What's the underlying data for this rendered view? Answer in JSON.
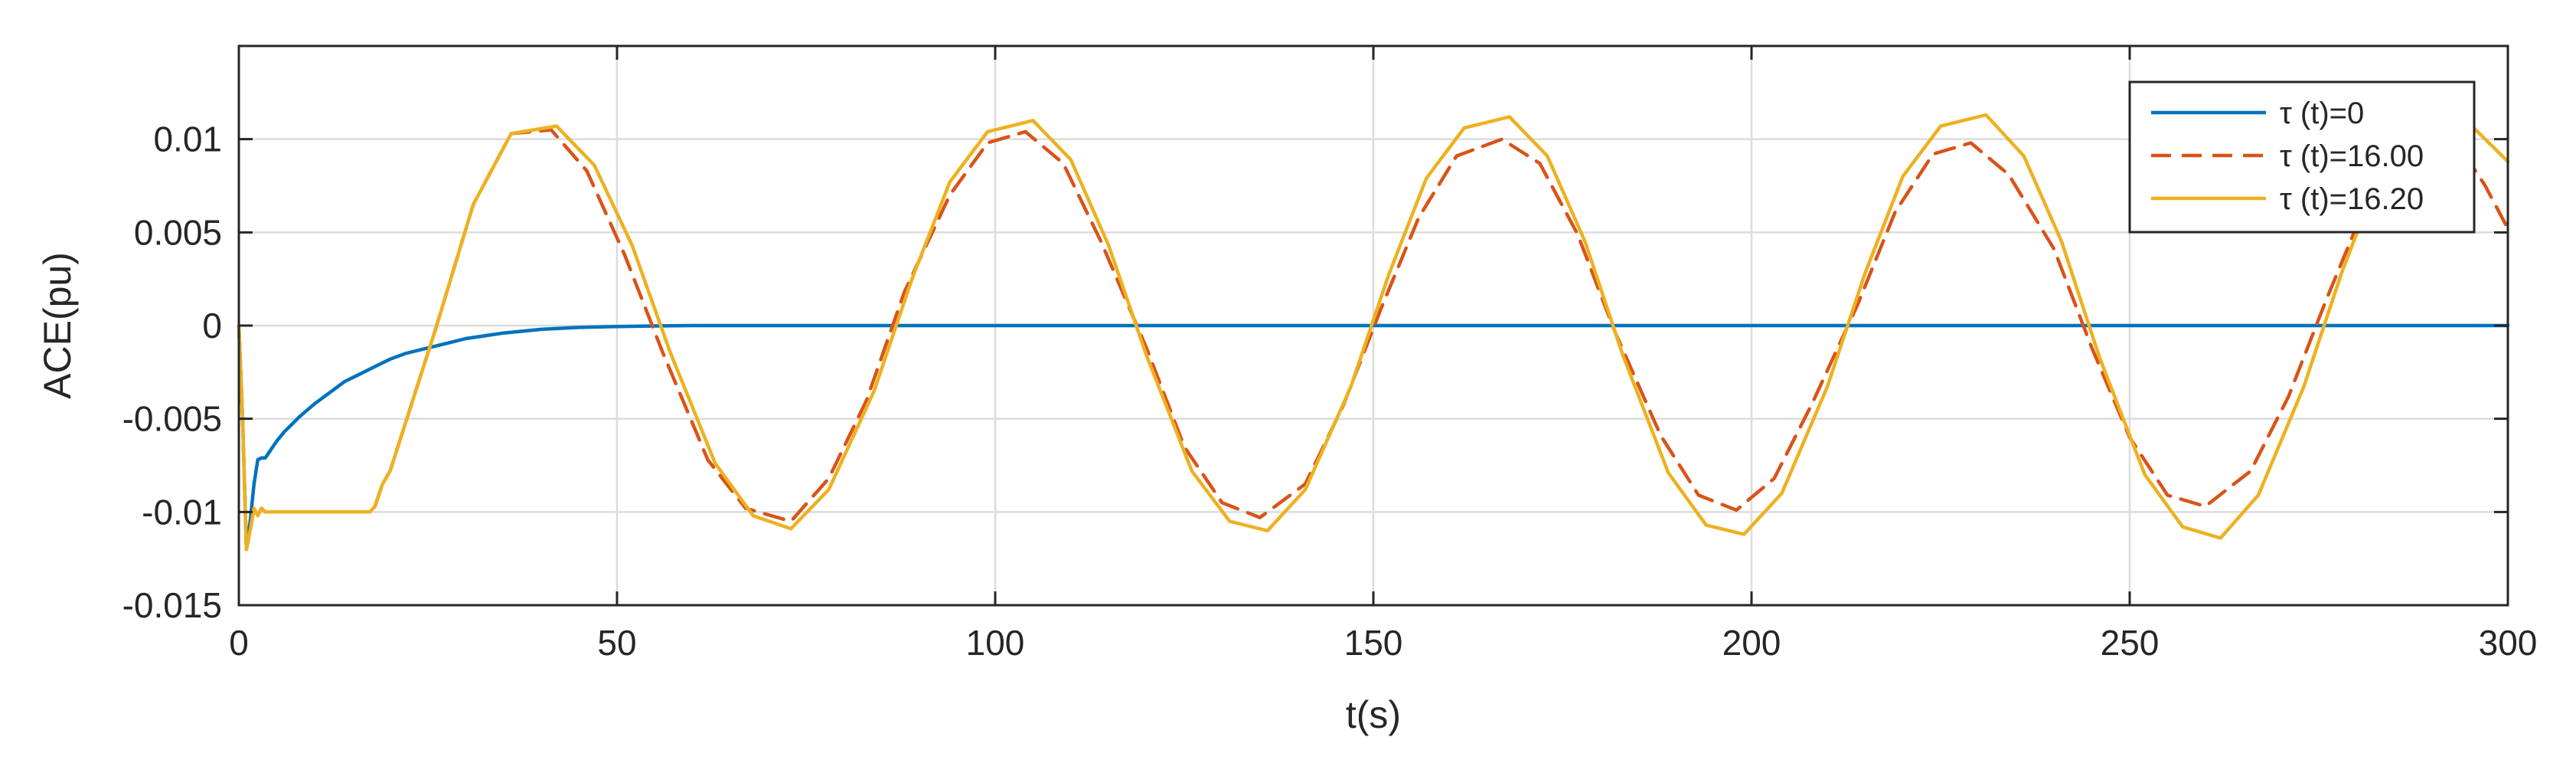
{
  "chart_data": {
    "type": "line",
    "title": "",
    "xlabel": "t(s)",
    "ylabel": "ACE(pu)",
    "xlim": [
      0,
      300
    ],
    "ylim": [
      -0.015,
      0.015
    ],
    "xticks": [
      0,
      50,
      100,
      150,
      200,
      250,
      300
    ],
    "xtick_labels": [
      "0",
      "50",
      "100",
      "150",
      "200",
      "250",
      "300"
    ],
    "yticks": [
      -0.015,
      -0.01,
      -0.005,
      0,
      0.005,
      0.01
    ],
    "ytick_labels": [
      "-0.015",
      "-0.01",
      "-0.005",
      "0",
      "0.005",
      "0.01"
    ],
    "grid": true,
    "legend_position": "top-right",
    "series": [
      {
        "name": "τ (t)=0",
        "color": "#0072BD",
        "dash": "solid",
        "x": [
          0,
          0.5,
          1,
          1.5,
          2,
          2.5,
          3,
          3.5,
          4,
          5,
          6,
          7,
          8,
          10,
          12,
          14,
          16,
          18,
          20,
          22,
          25,
          28,
          30,
          35,
          40,
          45,
          50,
          55,
          60,
          80,
          100,
          150,
          200,
          250,
          300
        ],
        "y": [
          0,
          -0.005,
          -0.012,
          -0.0105,
          -0.0085,
          -0.0072,
          -0.0071,
          -0.0071,
          -0.0068,
          -0.0062,
          -0.0057,
          -0.0053,
          -0.0049,
          -0.0042,
          -0.0036,
          -0.003,
          -0.0026,
          -0.0022,
          -0.0018,
          -0.0015,
          -0.0012,
          -0.0009,
          -0.0007,
          -0.0004,
          -0.0002,
          -0.0001,
          -5e-05,
          -2e-05,
          0,
          0,
          0,
          0,
          0,
          0,
          0
        ]
      },
      {
        "name": "τ (t)=16.00",
        "color": "#D95319",
        "dash": "dashed",
        "x": [
          0,
          0.5,
          1,
          1.5,
          2,
          2.5,
          3,
          3.5,
          4,
          5,
          10,
          15,
          17.3,
          18,
          19,
          20,
          26,
          31,
          36,
          41.3,
          46,
          51,
          56,
          62,
          67,
          73,
          78,
          83,
          88,
          94,
          99,
          104,
          109,
          114,
          120,
          125,
          130,
          135,
          141,
          146,
          151,
          156,
          161,
          167,
          172,
          177,
          182,
          188,
          193,
          198,
          203,
          208,
          214,
          219,
          224,
          229,
          234,
          240,
          245,
          250,
          255,
          260,
          266,
          271,
          276,
          281,
          286,
          292,
          297,
          300
        ],
        "y": [
          0,
          -0.005,
          -0.012,
          -0.011,
          -0.0098,
          -0.0102,
          -0.0098,
          -0.01,
          -0.01,
          -0.01,
          -0.01,
          -0.01,
          -0.01,
          -0.0097,
          -0.0085,
          -0.0078,
          -0.0002,
          0.0065,
          0.0103,
          0.0105,
          0.0083,
          0.0038,
          -0.0014,
          -0.0072,
          -0.0098,
          -0.0105,
          -0.0082,
          -0.004,
          0.0018,
          0.007,
          0.0098,
          0.0104,
          0.0087,
          0.0045,
          -0.0012,
          -0.0065,
          -0.0095,
          -0.0103,
          -0.0085,
          -0.0043,
          0.0009,
          0.0058,
          0.0091,
          0.01,
          0.0087,
          0.0049,
          -0.0004,
          -0.0059,
          -0.0091,
          -0.0099,
          -0.0082,
          -0.0042,
          0.0011,
          0.0061,
          0.0092,
          0.0098,
          0.0081,
          0.0041,
          -0.0012,
          -0.006,
          -0.0091,
          -0.0097,
          -0.0078,
          -0.0038,
          0.0014,
          0.0063,
          0.0094,
          0.0106,
          0.0075,
          0.0052
        ]
      },
      {
        "name": "τ (t)=16.20",
        "color": "#EDB120",
        "dash": "solid",
        "x": [
          0,
          0.5,
          1,
          1.5,
          2,
          2.5,
          3,
          3.5,
          4,
          5,
          10,
          15,
          17.3,
          18,
          19,
          20,
          26,
          31,
          36,
          42,
          47,
          52,
          57,
          63,
          68,
          73,
          78,
          84,
          89,
          94,
          99,
          105,
          110,
          115,
          120,
          126,
          131,
          136,
          141,
          147,
          152,
          157,
          162,
          168,
          173,
          178,
          183,
          189,
          194,
          199,
          204,
          210,
          215,
          220,
          225,
          231,
          236,
          241,
          246,
          252,
          257,
          262,
          267,
          273,
          278,
          283,
          288,
          294,
          299,
          300
        ],
        "y": [
          0,
          -0.005,
          -0.012,
          -0.011,
          -0.0098,
          -0.0102,
          -0.0098,
          -0.01,
          -0.01,
          -0.01,
          -0.01,
          -0.01,
          -0.01,
          -0.0097,
          -0.0085,
          -0.0078,
          -0.0002,
          0.0065,
          0.0103,
          0.0107,
          0.0086,
          0.0043,
          -0.0014,
          -0.0074,
          -0.0102,
          -0.0109,
          -0.0088,
          -0.0035,
          0.0025,
          0.0077,
          0.0104,
          0.011,
          0.0089,
          0.0043,
          -0.0016,
          -0.0078,
          -0.0105,
          -0.011,
          -0.0088,
          -0.0033,
          0.0027,
          0.0079,
          0.0106,
          0.0112,
          0.0091,
          0.0045,
          -0.0016,
          -0.0079,
          -0.0107,
          -0.0112,
          -0.009,
          -0.0033,
          0.0028,
          0.008,
          0.0107,
          0.0113,
          0.0091,
          0.0045,
          -0.0017,
          -0.008,
          -0.0108,
          -0.0114,
          -0.0091,
          -0.0033,
          0.0028,
          0.0081,
          0.0108,
          0.0112,
          0.0092,
          0.0088
        ]
      }
    ]
  }
}
